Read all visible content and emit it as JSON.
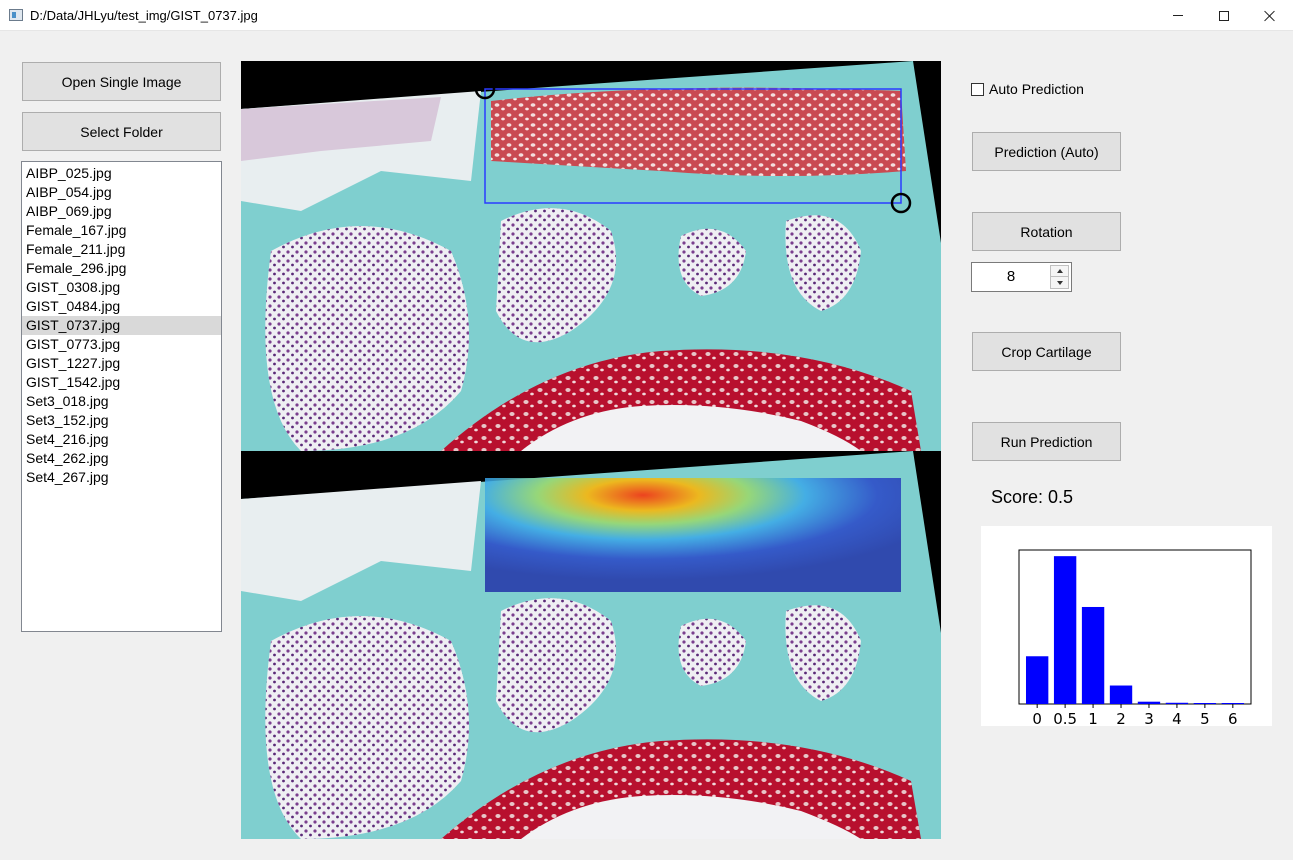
{
  "window": {
    "title": "D:/Data/JHLyu/test_img/GIST_0737.jpg"
  },
  "buttons": {
    "open_single": "Open Single Image",
    "select_folder": "Select Folder",
    "prediction_auto": "Prediction (Auto)",
    "rotation": "Rotation",
    "crop": "Crop Cartilage",
    "run": "Run Prediction"
  },
  "file_list": {
    "items": [
      "AIBP_025.jpg",
      "AIBP_054.jpg",
      "AIBP_069.jpg",
      "Female_167.jpg",
      "Female_211.jpg",
      "Female_296.jpg",
      "GIST_0308.jpg",
      "GIST_0484.jpg",
      "GIST_0737.jpg",
      "GIST_0773.jpg",
      "GIST_1227.jpg",
      "GIST_1542.jpg",
      "Set3_018.jpg",
      "Set3_152.jpg",
      "Set4_216.jpg",
      "Set4_262.jpg",
      "Set4_267.jpg"
    ],
    "selected_index": 8
  },
  "auto_prediction": {
    "label": "Auto Prediction",
    "checked": false
  },
  "rotation_spin": {
    "value": "8"
  },
  "score": {
    "text": "Score: 0.5"
  },
  "colors": {
    "bar": "#0000ff",
    "roi_box": "#2a3cff"
  },
  "chart_data": {
    "type": "bar",
    "categories": [
      "0",
      "0.5",
      "1",
      "2",
      "3",
      "4",
      "5",
      "6"
    ],
    "values": [
      0.31,
      0.96,
      0.63,
      0.12,
      0.015,
      0.008,
      0.006,
      0.006
    ],
    "ylim": [
      0,
      1
    ],
    "title": "",
    "xlabel": "",
    "ylabel": ""
  }
}
